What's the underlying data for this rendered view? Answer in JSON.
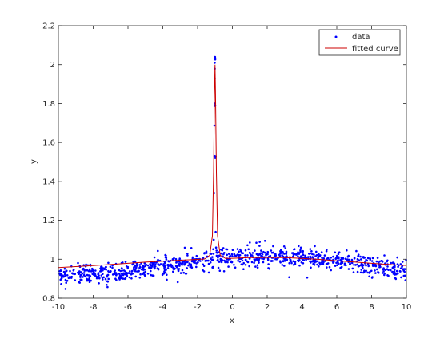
{
  "chart_data": {
    "type": "scatter",
    "xlabel": "x",
    "ylabel": "y",
    "xlim": [
      -10,
      10
    ],
    "ylim": [
      0.8,
      2.2
    ],
    "xticks": [
      "-10",
      "-8",
      "-6",
      "-4",
      "-2",
      "0",
      "2",
      "4",
      "6",
      "8",
      "10"
    ],
    "yticks": [
      "0.8",
      "1",
      "1.2",
      "1.4",
      "1.6",
      "1.8",
      "2",
      "2.2"
    ],
    "grid": false,
    "legend_position": "top-right",
    "colors": {
      "data": "#0000ff",
      "fit": "#cc0000",
      "axis": "#262626"
    },
    "series": [
      {
        "name": "data",
        "style": "markers",
        "description": "about 1000 noisy samples, uniform x on [-10,10]; y = 1 + 0.05*cos(0.25*(x-2)) + noise (std ~0.025), with a narrow peak near x = -1",
        "peak": {
          "x": -1.0,
          "y": 2.04
        },
        "noise_std": 0.025,
        "n": 1000
      },
      {
        "name": "fitted curve",
        "style": "line",
        "points": [
          [
            -10,
            0.957
          ],
          [
            -9,
            0.962
          ],
          [
            -8,
            0.967
          ],
          [
            -7,
            0.973
          ],
          [
            -6,
            0.979
          ],
          [
            -5,
            0.985
          ],
          [
            -4,
            0.99
          ],
          [
            -3,
            0.995
          ],
          [
            -2,
            0.999
          ],
          [
            -1.6,
            1.001
          ],
          [
            -1.3,
            1.02
          ],
          [
            -1.15,
            1.12
          ],
          [
            -1.08,
            1.45
          ],
          [
            -1.03,
            1.85
          ],
          [
            -1.0,
            2.0
          ],
          [
            -0.97,
            1.85
          ],
          [
            -0.92,
            1.45
          ],
          [
            -0.85,
            1.12
          ],
          [
            -0.7,
            1.02
          ],
          [
            -0.4,
            1.004
          ],
          [
            0,
            1.005
          ],
          [
            1,
            1.008
          ],
          [
            2,
            1.009
          ],
          [
            3,
            1.008
          ],
          [
            4,
            1.004
          ],
          [
            5,
            0.999
          ],
          [
            6,
            0.992
          ],
          [
            7,
            0.986
          ],
          [
            8,
            0.979
          ],
          [
            9,
            0.973
          ],
          [
            10,
            0.968
          ]
        ]
      }
    ]
  }
}
